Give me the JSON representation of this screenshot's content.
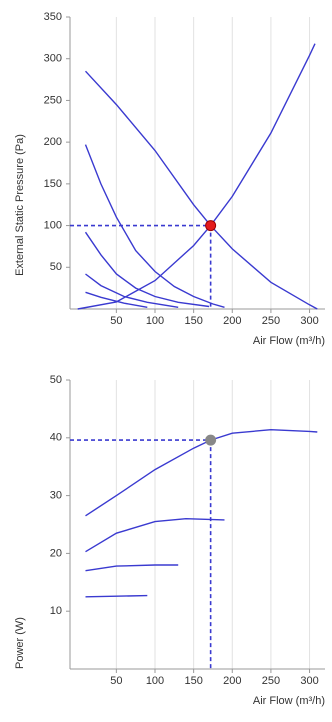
{
  "chart_data": [
    {
      "type": "line",
      "ylabel": "External Static Pressure (Pa)",
      "xlabel": "Air Flow (m³/h)",
      "xlim": [
        -10,
        320
      ],
      "ylim": [
        0,
        350
      ],
      "xticks": [
        50,
        100,
        150,
        200,
        250,
        300
      ],
      "yticks": [
        50,
        100,
        150,
        200,
        250,
        300,
        350
      ],
      "grid": "x",
      "series": [
        {
          "color": "#3a3ad0",
          "x": [
            10,
            50,
            100,
            150,
            172,
            200,
            250,
            300,
            310
          ],
          "values": [
            285,
            245,
            190,
            125,
            100,
            72,
            32,
            5,
            0
          ]
        },
        {
          "color": "#3a3ad0",
          "x": [
            10,
            30,
            50,
            75,
            100,
            125,
            150,
            175,
            190
          ],
          "values": [
            197,
            150,
            110,
            70,
            45,
            27,
            15,
            6,
            2
          ]
        },
        {
          "color": "#3a3ad0",
          "x": [
            10,
            30,
            50,
            75,
            100,
            130,
            170
          ],
          "values": [
            92,
            65,
            42,
            25,
            15,
            8,
            3
          ]
        },
        {
          "color": "#3a3ad0",
          "x": [
            10,
            30,
            60,
            90,
            130
          ],
          "values": [
            42,
            28,
            15,
            8,
            2
          ]
        },
        {
          "color": "#3a3ad0",
          "x": [
            10,
            30,
            60,
            90
          ],
          "values": [
            20,
            14,
            7,
            2
          ]
        },
        {
          "color": "#3a3ad0",
          "x": [
            0,
            50,
            100,
            150,
            172,
            200,
            250,
            300,
            307
          ],
          "values": [
            0,
            8.5,
            34,
            76,
            100,
            135,
            211,
            304,
            318
          ]
        }
      ],
      "marker": {
        "x": 172,
        "y": 100,
        "color": "#e41a1c",
        "line_color": "#3a3ad0"
      }
    },
    {
      "type": "line",
      "ylabel": "Power (W)",
      "xlabel": "Air Flow (m³/h)",
      "xlim": [
        -10,
        320
      ],
      "ylim": [
        0,
        50
      ],
      "xticks": [
        50,
        100,
        150,
        200,
        250,
        300
      ],
      "yticks": [
        10,
        20,
        30,
        40,
        50
      ],
      "grid": "x",
      "series": [
        {
          "color": "#3a3ad0",
          "x": [
            10,
            50,
            100,
            150,
            172,
            200,
            250,
            300,
            310
          ],
          "values": [
            26.5,
            30,
            34.5,
            38.2,
            39.6,
            40.8,
            41.4,
            41.1,
            41
          ]
        },
        {
          "color": "#3a3ad0",
          "x": [
            10,
            50,
            100,
            140,
            190
          ],
          "values": [
            20.3,
            23.5,
            25.5,
            26,
            25.8
          ]
        },
        {
          "color": "#3a3ad0",
          "x": [
            10,
            50,
            100,
            130
          ],
          "values": [
            17,
            17.8,
            18,
            18
          ]
        },
        {
          "color": "#3a3ad0",
          "x": [
            10,
            50,
            90
          ],
          "values": [
            12.5,
            12.6,
            12.7
          ]
        }
      ],
      "marker": {
        "x": 172,
        "y": 39.6,
        "color": "#888888",
        "line_color": "#3a3ad0"
      }
    }
  ]
}
